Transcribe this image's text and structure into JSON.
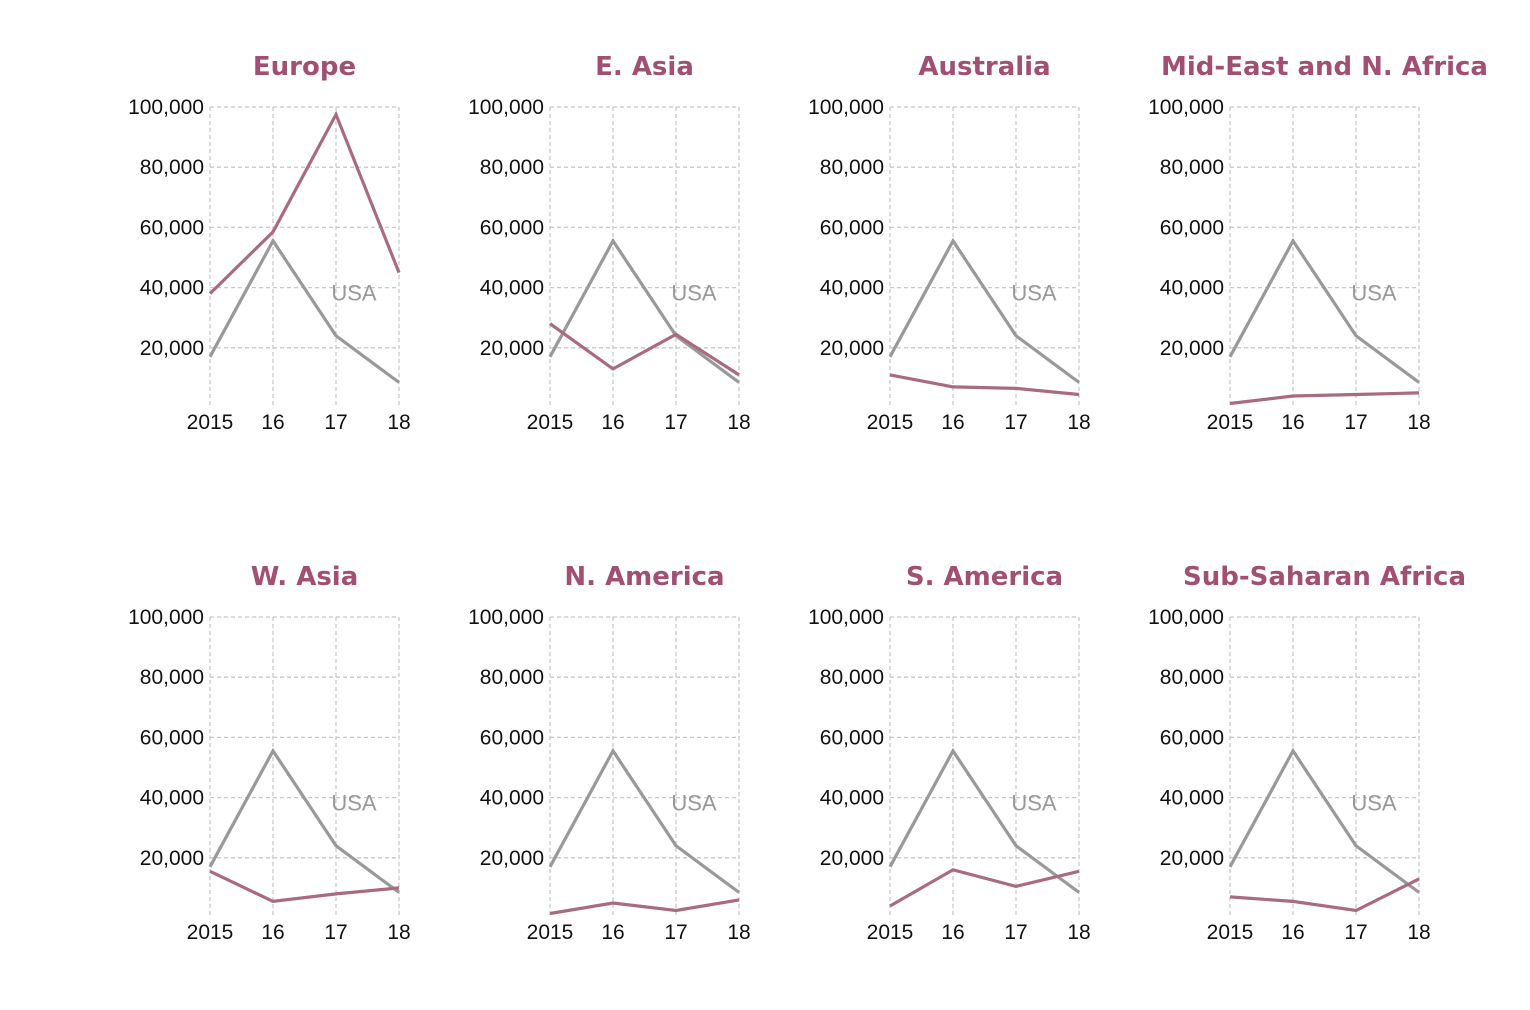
{
  "colors": {
    "region": "#a86b82",
    "title": "#a14f73",
    "usa": "#999999",
    "grid": "#c8c8c8",
    "text": "#111111"
  },
  "chart_data": [
    {
      "type": "line",
      "title": "Europe",
      "categories": [
        "2015",
        "16",
        "17",
        "18"
      ],
      "ylim": [
        0,
        100000
      ],
      "yticks": [
        "20,000",
        "40,000",
        "60,000",
        "80,000",
        "100,000"
      ],
      "grid": true,
      "annotation": "USA",
      "series": [
        {
          "name": "USA",
          "values": [
            17000,
            55500,
            24000,
            8500
          ]
        },
        {
          "values": [
            38000,
            58500,
            97500,
            45000
          ]
        }
      ]
    },
    {
      "type": "line",
      "title": "E. Asia",
      "categories": [
        "2015",
        "16",
        "17",
        "18"
      ],
      "ylim": [
        0,
        100000
      ],
      "yticks": [
        "20,000",
        "40,000",
        "60,000",
        "80,000",
        "100,000"
      ],
      "grid": true,
      "annotation": "USA",
      "series": [
        {
          "name": "USA",
          "values": [
            17000,
            55500,
            24000,
            8500
          ]
        },
        {
          "values": [
            28000,
            13000,
            24500,
            11000
          ]
        }
      ]
    },
    {
      "type": "line",
      "title": "Australia",
      "categories": [
        "2015",
        "16",
        "17",
        "18"
      ],
      "ylim": [
        0,
        100000
      ],
      "yticks": [
        "20,000",
        "40,000",
        "60,000",
        "80,000",
        "100,000"
      ],
      "grid": true,
      "annotation": "USA",
      "series": [
        {
          "name": "USA",
          "values": [
            17000,
            55500,
            24000,
            8500
          ]
        },
        {
          "values": [
            11000,
            7000,
            6500,
            4500
          ]
        }
      ]
    },
    {
      "type": "line",
      "title": "Mid-East and N. Africa",
      "categories": [
        "2015",
        "16",
        "17",
        "18"
      ],
      "ylim": [
        0,
        100000
      ],
      "yticks": [
        "20,000",
        "40,000",
        "60,000",
        "80,000",
        "100,000"
      ],
      "grid": true,
      "annotation": "USA",
      "series": [
        {
          "name": "USA",
          "values": [
            17000,
            55500,
            24000,
            8500
          ]
        },
        {
          "values": [
            1500,
            4000,
            4500,
            5000
          ]
        }
      ]
    },
    {
      "type": "line",
      "title": "W. Asia",
      "categories": [
        "2015",
        "16",
        "17",
        "18"
      ],
      "ylim": [
        0,
        100000
      ],
      "yticks": [
        "20,000",
        "40,000",
        "60,000",
        "80,000",
        "100,000"
      ],
      "grid": true,
      "annotation": "USA",
      "series": [
        {
          "name": "USA",
          "values": [
            17000,
            55500,
            24000,
            8500
          ]
        },
        {
          "values": [
            15500,
            5500,
            8000,
            10000
          ]
        }
      ]
    },
    {
      "type": "line",
      "title": "N. America",
      "categories": [
        "2015",
        "16",
        "17",
        "18"
      ],
      "ylim": [
        0,
        100000
      ],
      "yticks": [
        "20,000",
        "40,000",
        "60,000",
        "80,000",
        "100,000"
      ],
      "grid": true,
      "annotation": "USA",
      "series": [
        {
          "name": "USA",
          "values": [
            17000,
            55500,
            24000,
            8500
          ]
        },
        {
          "values": [
            1500,
            5000,
            2500,
            6000
          ]
        }
      ]
    },
    {
      "type": "line",
      "title": "S. America",
      "categories": [
        "2015",
        "16",
        "17",
        "18"
      ],
      "ylim": [
        0,
        100000
      ],
      "yticks": [
        "20,000",
        "40,000",
        "60,000",
        "80,000",
        "100,000"
      ],
      "grid": true,
      "annotation": "USA",
      "series": [
        {
          "name": "USA",
          "values": [
            17000,
            55500,
            24000,
            8500
          ]
        },
        {
          "values": [
            4000,
            16000,
            10500,
            15500
          ]
        }
      ]
    },
    {
      "type": "line",
      "title": "Sub-Saharan Africa",
      "categories": [
        "2015",
        "16",
        "17",
        "18"
      ],
      "ylim": [
        0,
        100000
      ],
      "yticks": [
        "20,000",
        "40,000",
        "60,000",
        "80,000",
        "100,000"
      ],
      "grid": true,
      "annotation": "USA",
      "series": [
        {
          "name": "USA",
          "values": [
            17000,
            55500,
            24000,
            8500
          ]
        },
        {
          "values": [
            7000,
            5500,
            2500,
            13000
          ]
        }
      ]
    }
  ]
}
